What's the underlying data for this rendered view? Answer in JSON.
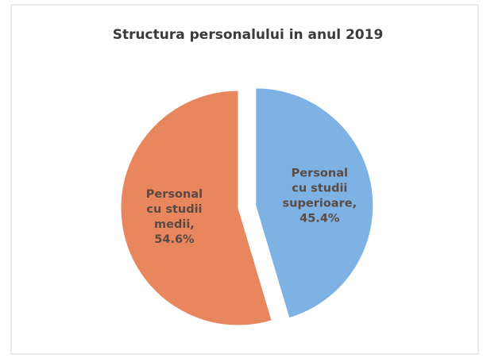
{
  "chart_data": {
    "type": "pie",
    "title": "Structura personalului in anul 2019",
    "categories": [
      "Personal cu studii superioare,",
      "Personal cu studii medii,"
    ],
    "values": [
      45.4,
      54.6
    ],
    "value_labels": [
      "45.4%",
      "54.6%"
    ],
    "colors": [
      "#7eb2e4",
      "#e8875e"
    ],
    "exploded": [
      true,
      false
    ]
  }
}
